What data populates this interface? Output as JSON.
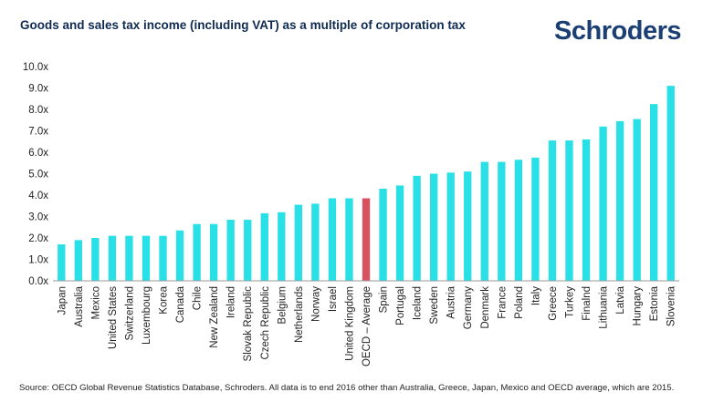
{
  "header": {
    "title": "Goods and sales tax income (including VAT) as a multiple of corporation tax",
    "brand": "Schroders"
  },
  "footer": {
    "source": "Source: OECD Global Revenue Statistics Database, Schroders. All data is to end 2016 other than Australia, Greece, Japan, Mexico and OECD average, which are 2015."
  },
  "colors": {
    "bar": "#28e0e6",
    "highlight_bar": "#d9515f",
    "axis": "#999999",
    "title": "#0f2b52",
    "brand": "#1b3f73"
  },
  "chart_data": {
    "type": "bar",
    "title": "Goods and sales tax income (including VAT) as a multiple of corporation tax",
    "xlabel": "",
    "ylabel": "",
    "ylim": [
      0,
      10
    ],
    "yticks": [
      "0.0x",
      "1.0x",
      "2.0x",
      "3.0x",
      "4.0x",
      "5.0x",
      "6.0x",
      "7.0x",
      "8.0x",
      "9.0x",
      "10.0x"
    ],
    "grid": false,
    "highlight": "OECD – Average",
    "categories": [
      "Japan",
      "Australia",
      "Mexico",
      "United States",
      "Switzerland",
      "Luxembourg",
      "Korea",
      "Canada",
      "Chile",
      "New Zealand",
      "Ireland",
      "Slovak Republic",
      "Czech Republic",
      "Belgium",
      "Netherlands",
      "Norway",
      "Israel",
      "United Kingdom",
      "OECD – Average",
      "Spain",
      "Portugal",
      "Iceland",
      "Sweden",
      "Austria",
      "Germany",
      "Denmark",
      "France",
      "Poland",
      "Italy",
      "Greece",
      "Turkey",
      "Finalnd",
      "Lithuania",
      "Latvia",
      "Hungary",
      "Estonia",
      "Slovenia"
    ],
    "values": [
      1.7,
      1.9,
      2.0,
      2.1,
      2.1,
      2.1,
      2.1,
      2.35,
      2.65,
      2.65,
      2.85,
      2.85,
      3.15,
      3.2,
      3.55,
      3.6,
      3.85,
      3.85,
      3.85,
      4.3,
      4.45,
      4.9,
      5.0,
      5.05,
      5.1,
      5.55,
      5.55,
      5.65,
      5.75,
      6.55,
      6.55,
      6.6,
      7.2,
      7.45,
      7.55,
      8.25,
      9.1
    ]
  }
}
